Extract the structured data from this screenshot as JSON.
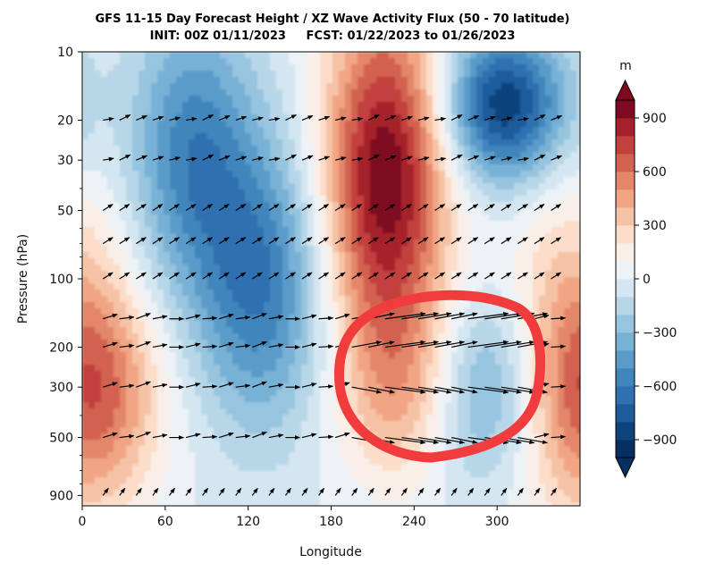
{
  "chart_data": {
    "type": "heatmap",
    "title_line1": "GFS 11-15 Day Forecast Height / XZ Wave Activity Flux (50 - 70 latitude)",
    "title_line2": "INIT: 00Z 01/11/2023     FCST: 01/22/2023 to 01/26/2023",
    "xlabel": "Longitude",
    "ylabel": "Pressure (hPa)",
    "xlim": [
      0,
      360
    ],
    "ylim_hPa": [
      1000,
      10
    ],
    "y_scale": "log",
    "x_ticks": [
      0,
      60,
      120,
      180,
      240,
      300
    ],
    "x_tick_labels": [
      "0",
      "60",
      "120",
      "180",
      "240",
      "300"
    ],
    "y_ticks": [
      10,
      20,
      30,
      50,
      100,
      200,
      300,
      500,
      900
    ],
    "y_tick_labels": [
      "10",
      "20",
      "30",
      "50",
      "100",
      "200",
      "300",
      "500",
      "900"
    ],
    "colorbar": {
      "unit_label": "m",
      "range": [
        -1000,
        1000
      ],
      "ticks": [
        -900,
        -600,
        -300,
        0,
        300,
        600,
        900
      ],
      "tick_labels": [
        "−900",
        "−600",
        "−300",
        "0",
        "300",
        "600",
        "900"
      ],
      "colormap": "RdBu_r",
      "extend": "both"
    },
    "height_anomaly_features": [
      {
        "feature": "positive",
        "lon_center": 220,
        "p_from": 10,
        "p_to": 120,
        "value": 1000
      },
      {
        "feature": "positive",
        "lon_center": 15,
        "p_from": 150,
        "p_to": 700,
        "value": 450
      },
      {
        "feature": "positive",
        "lon_center": 235,
        "p_from": 150,
        "p_to": 600,
        "value": 380
      },
      {
        "feature": "positive",
        "lon_center": 350,
        "p_from": 60,
        "p_to": 700,
        "value": 380
      },
      {
        "feature": "negative",
        "lon_center": 80,
        "p_from": 10,
        "p_to": 80,
        "value": -550
      },
      {
        "feature": "negative",
        "lon_center": 130,
        "p_from": 40,
        "p_to": 300,
        "value": -580
      },
      {
        "feature": "negative",
        "lon_center": 305,
        "p_from": 10,
        "p_to": 30,
        "value": -900
      },
      {
        "feature": "negative",
        "lon_center": 290,
        "p_from": 150,
        "p_to": 600,
        "value": -450
      }
    ],
    "flux_vector_levels_hPa": [
      20,
      30,
      50,
      70,
      100,
      150,
      200,
      300,
      500,
      900
    ],
    "annotation": {
      "type": "hand-drawn circle",
      "color": "#f03c3c",
      "lon_range": [
        185,
        335
      ],
      "p_range": [
        130,
        600
      ]
    }
  },
  "colors": {
    "annotation_circle": "#f03c3c",
    "arrow": "#000000"
  }
}
